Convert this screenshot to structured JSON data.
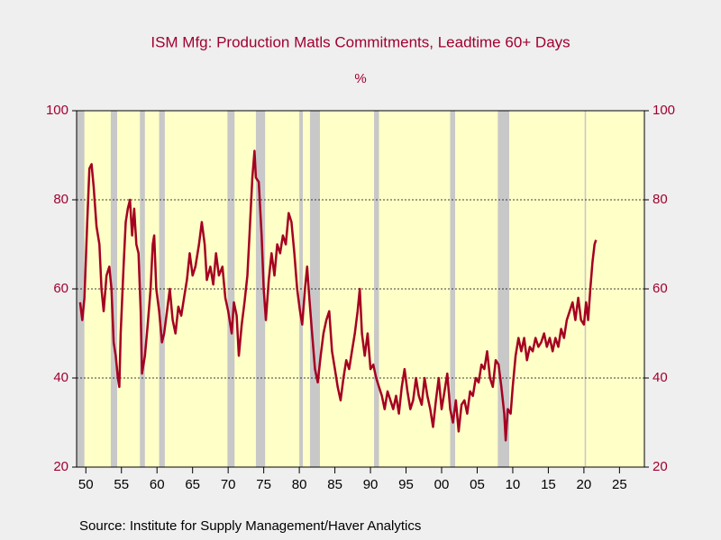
{
  "chart_data": {
    "type": "line",
    "title": "ISM Mfg: Production Matls Commitments, Leadtime 60+ Days",
    "subtitle": "%",
    "source": "Source:  Institute for Supply Management/Haver Analytics",
    "xlim": [
      1948.7,
      2028.5
    ],
    "xticks": [
      {
        "value": 1950,
        "label": "50"
      },
      {
        "value": 1955,
        "label": "55"
      },
      {
        "value": 1960,
        "label": "60"
      },
      {
        "value": 1965,
        "label": "65"
      },
      {
        "value": 1970,
        "label": "70"
      },
      {
        "value": 1975,
        "label": "75"
      },
      {
        "value": 1980,
        "label": "80"
      },
      {
        "value": 1985,
        "label": "85"
      },
      {
        "value": 1990,
        "label": "90"
      },
      {
        "value": 1995,
        "label": "95"
      },
      {
        "value": 2000,
        "label": "00"
      },
      {
        "value": 2005,
        "label": "05"
      },
      {
        "value": 2010,
        "label": "10"
      },
      {
        "value": 2015,
        "label": "15"
      },
      {
        "value": 2020,
        "label": "20"
      },
      {
        "value": 2025,
        "label": "25"
      }
    ],
    "ylim": [
      20,
      100
    ],
    "yticks": [
      20,
      40,
      60,
      80,
      100
    ],
    "y2lim": [
      20,
      100
    ],
    "y2ticks": [
      20,
      40,
      60,
      80,
      100
    ],
    "grid": true,
    "recessions": [
      [
        1948.7,
        1949.8
      ],
      [
        1953.5,
        1954.4
      ],
      [
        1957.6,
        1958.3
      ],
      [
        1960.3,
        1961.1
      ],
      [
        1969.9,
        1970.9
      ],
      [
        1973.9,
        1975.2
      ],
      [
        1980.0,
        1980.5
      ],
      [
        1981.5,
        1982.9
      ],
      [
        1990.5,
        1991.2
      ],
      [
        2001.2,
        2001.9
      ],
      [
        2007.9,
        2009.5
      ],
      [
        2020.1,
        2020.3
      ]
    ],
    "x": [
      1949.2,
      1949.5,
      1949.8,
      1950.2,
      1950.5,
      1950.8,
      1951.1,
      1951.5,
      1951.9,
      1952.2,
      1952.5,
      1952.9,
      1953.3,
      1953.6,
      1953.9,
      1954.2,
      1954.5,
      1954.7,
      1954.9,
      1955.3,
      1955.6,
      1955.9,
      1956.2,
      1956.5,
      1956.8,
      1957.1,
      1957.4,
      1957.7,
      1957.9,
      1958.3,
      1958.7,
      1959.1,
      1959.4,
      1959.6,
      1959.9,
      1960.3,
      1960.7,
      1961.0,
      1961.4,
      1961.8,
      1962.2,
      1962.6,
      1963.0,
      1963.4,
      1963.8,
      1964.2,
      1964.6,
      1965.0,
      1965.4,
      1965.9,
      1966.3,
      1966.7,
      1967.0,
      1967.5,
      1967.9,
      1968.3,
      1968.7,
      1969.2,
      1969.6,
      1970.0,
      1970.5,
      1970.8,
      1971.2,
      1971.5,
      1971.9,
      1972.3,
      1972.7,
      1973.0,
      1973.4,
      1973.7,
      1973.9,
      1974.3,
      1974.7,
      1975.0,
      1975.3,
      1975.7,
      1976.1,
      1976.5,
      1976.9,
      1977.3,
      1977.7,
      1978.1,
      1978.5,
      1978.9,
      1979.3,
      1979.7,
      1980.1,
      1980.4,
      1980.8,
      1981.1,
      1981.4,
      1981.8,
      1982.2,
      1982.6,
      1983.0,
      1983.4,
      1983.8,
      1984.2,
      1984.6,
      1985.0,
      1985.4,
      1985.8,
      1986.2,
      1986.6,
      1987.0,
      1987.4,
      1987.8,
      1988.2,
      1988.5,
      1988.8,
      1989.2,
      1989.6,
      1990.0,
      1990.4,
      1990.8,
      1991.2,
      1991.6,
      1992.0,
      1992.4,
      1992.8,
      1993.2,
      1993.6,
      1994.0,
      1994.4,
      1994.8,
      1995.2,
      1995.6,
      1996.0,
      1996.4,
      1996.8,
      1997.2,
      1997.6,
      1998.0,
      1998.4,
      1998.8,
      1999.2,
      1999.6,
      2000.0,
      2000.4,
      2000.8,
      2001.2,
      2001.6,
      2002.0,
      2002.4,
      2002.8,
      2003.2,
      2003.6,
      2004.0,
      2004.4,
      2004.8,
      2005.2,
      2005.6,
      2006.0,
      2006.4,
      2006.8,
      2007.2,
      2007.6,
      2008.0,
      2008.4,
      2008.8,
      2009.0,
      2009.3,
      2009.7,
      2010.0,
      2010.4,
      2010.8,
      2011.2,
      2011.6,
      2012.0,
      2012.4,
      2012.8,
      2013.2,
      2013.6,
      2014.0,
      2014.4,
      2014.8,
      2015.2,
      2015.6,
      2016.0,
      2016.4,
      2016.8,
      2017.2,
      2017.6,
      2018.0,
      2018.4,
      2018.8,
      2019.2,
      2019.6,
      2020.0,
      2020.3,
      2020.6,
      2020.9,
      2021.2,
      2021.5,
      2021.7
    ],
    "series": [
      {
        "color": "#a50021",
        "values": [
          57,
          53,
          58,
          75,
          87,
          88,
          83,
          74,
          70,
          60,
          55,
          63,
          65,
          60,
          48,
          45,
          40,
          38,
          50,
          65,
          75,
          78,
          80,
          72,
          78,
          70,
          68,
          55,
          41,
          45,
          52,
          60,
          70,
          72,
          60,
          55,
          48,
          50,
          55,
          60,
          53,
          50,
          56,
          54,
          58,
          62,
          68,
          63,
          65,
          70,
          75,
          70,
          62,
          65,
          61,
          68,
          63,
          65,
          58,
          55,
          50,
          57,
          54,
          45,
          52,
          57,
          63,
          72,
          85,
          91,
          85,
          84,
          72,
          60,
          53,
          62,
          68,
          63,
          70,
          68,
          72,
          70,
          77,
          75,
          68,
          60,
          55,
          52,
          60,
          65,
          58,
          50,
          42,
          39,
          45,
          50,
          53,
          55,
          46,
          42,
          38,
          35,
          40,
          44,
          42,
          46,
          50,
          55,
          60,
          50,
          45,
          50,
          42,
          43,
          40,
          38,
          36,
          33,
          37,
          35,
          33,
          36,
          32,
          38,
          42,
          37,
          33,
          35,
          40,
          36,
          34,
          40,
          36,
          33,
          29,
          35,
          40,
          33,
          37,
          41,
          33,
          30,
          35,
          28,
          34,
          35,
          32,
          37,
          36,
          40,
          39,
          43,
          42,
          46,
          40,
          38,
          44,
          43,
          38,
          32,
          26,
          33,
          32,
          38,
          45,
          49,
          46,
          49,
          44,
          47,
          46,
          49,
          47,
          48,
          50,
          47,
          49,
          46,
          49,
          47,
          51,
          49,
          53,
          55,
          57,
          53,
          58,
          53,
          52,
          57,
          53,
          60,
          66,
          70,
          71
        ]
      }
    ]
  }
}
